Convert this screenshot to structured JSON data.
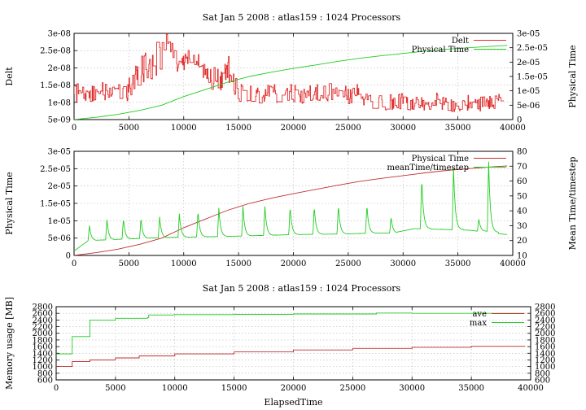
{
  "chart_data": [
    {
      "type": "line",
      "title": "Sat Jan 5 2008 : atlas159 : 1024 Processors",
      "xlabel": "",
      "ylabel": "Delt",
      "y2label": "Physical Time",
      "xlim": [
        0,
        40000
      ],
      "ylim": [
        5e-09,
        3e-08
      ],
      "y2lim": [
        0,
        3e-05
      ],
      "x_ticks": [
        "0",
        "5000",
        "10000",
        "15000",
        "20000",
        "25000",
        "30000",
        "35000",
        "40000"
      ],
      "y_ticks": [
        "5e-09",
        "1e-08",
        "1.5e-08",
        "2e-08",
        "2.5e-08",
        "3e-08"
      ],
      "y2_ticks": [
        "0",
        "5e-06",
        "1e-05",
        "1.5e-05",
        "2e-05",
        "2.5e-05",
        "3e-05"
      ],
      "grid": true,
      "legend_position": "top-right",
      "series": [
        {
          "name": "Delt",
          "axis": "y",
          "color": "#e03030",
          "x": [
            0,
            800,
            1600,
            2500,
            3500,
            4500,
            5000,
            5800,
            6500,
            7200,
            8000,
            8500,
            9000,
            9500,
            10000,
            10500,
            11000,
            11500,
            12000,
            12500,
            13000,
            13500,
            14000,
            15000,
            16000,
            17000,
            18000,
            19000,
            20000,
            21000,
            22000,
            23000,
            24000,
            25000,
            26000,
            26500,
            27000,
            28000,
            29000,
            30000,
            31000,
            32000,
            33000,
            34000,
            35000,
            36000,
            37000,
            38000,
            39000
          ],
          "y": [
            1.25e-08,
            1.3e-08,
            1.2e-08,
            1.35e-08,
            1.3e-08,
            1.2e-08,
            1.4e-08,
            1.9e-08,
            2e-08,
            2.15e-08,
            2.5e-08,
            2.7e-08,
            2.55e-08,
            2e-08,
            2.2e-08,
            2.3e-08,
            2.25e-08,
            2.1e-08,
            1.8e-08,
            1.75e-08,
            1.6e-08,
            1.65e-08,
            2e-08,
            1.25e-08,
            1.25e-08,
            1.2e-08,
            1.3e-08,
            1.25e-08,
            1.3e-08,
            1.2e-08,
            1.25e-08,
            1.3e-08,
            1.25e-08,
            1.2e-08,
            1.3e-08,
            1.1e-08,
            1.05e-08,
            1e-08,
            1e-08,
            1.05e-08,
            9.5e-09,
            1e-08,
            1.05e-08,
            9.5e-09,
            8.5e-09,
            1e-08,
            9.5e-09,
            1e-08,
            1.05e-08
          ]
        },
        {
          "name": "Physical Time",
          "axis": "y2",
          "color": "#22cc22",
          "x": [
            0,
            2000,
            4000,
            6000,
            8000,
            10000,
            12000,
            14000,
            16000,
            18000,
            20000,
            22000,
            24000,
            26000,
            28000,
            30000,
            32000,
            34000,
            36000,
            38000,
            39500
          ],
          "y": [
            0,
            8e-07,
            1.8e-06,
            3.2e-06,
            5e-06,
            8e-06,
            1.05e-05,
            1.3e-05,
            1.5e-05,
            1.65e-05,
            1.78e-05,
            1.9e-05,
            2.02e-05,
            2.13e-05,
            2.22e-05,
            2.3e-05,
            2.38e-05,
            2.45e-05,
            2.5e-05,
            2.55e-05,
            2.58e-05
          ]
        }
      ]
    },
    {
      "type": "line",
      "title": "",
      "xlabel": "",
      "ylabel": "Physical Time",
      "y2label": "Mean Time/timestep",
      "xlim": [
        0,
        40000
      ],
      "ylim": [
        0,
        3e-05
      ],
      "y2lim": [
        10,
        80
      ],
      "x_ticks": [
        "0",
        "5000",
        "10000",
        "15000",
        "20000",
        "25000",
        "30000",
        "35000",
        "40000"
      ],
      "y_ticks": [
        "0",
        "5e-06",
        "1e-05",
        "1.5e-05",
        "2e-05",
        "2.5e-05",
        "3e-05"
      ],
      "y2_ticks": [
        "10",
        "20",
        "30",
        "40",
        "50",
        "60",
        "70",
        "80"
      ],
      "grid": true,
      "legend_position": "top-right",
      "series": [
        {
          "name": "Physical Time",
          "axis": "y",
          "color": "#c03030",
          "x": [
            0,
            2000,
            4000,
            6000,
            8000,
            10000,
            12000,
            14000,
            16000,
            18000,
            20000,
            22000,
            24000,
            26000,
            28000,
            30000,
            32000,
            34000,
            36000,
            38000,
            39500
          ],
          "y": [
            0,
            8e-07,
            1.8e-06,
            3.2e-06,
            5e-06,
            8e-06,
            1.05e-05,
            1.3e-05,
            1.5e-05,
            1.65e-05,
            1.78e-05,
            1.9e-05,
            2.02e-05,
            2.13e-05,
            2.22e-05,
            2.3e-05,
            2.38e-05,
            2.45e-05,
            2.5e-05,
            2.55e-05,
            2.58e-05
          ]
        },
        {
          "name": "meanTime/timestep",
          "axis": "y2",
          "color": "#22cc22",
          "baseline_x": [
            0,
            1300,
            8000,
            15000,
            20000,
            25000,
            27000,
            29000,
            31000,
            36000,
            39500
          ],
          "baseline_y": [
            13,
            20,
            22,
            23,
            24,
            24.5,
            25,
            25,
            28,
            27,
            24
          ],
          "peaks_x": [
            1400,
            3000,
            4500,
            6100,
            7800,
            9600,
            11300,
            13200,
            15400,
            17400,
            19700,
            21900,
            24100,
            26700,
            28900,
            31700,
            34600,
            36900,
            37800
          ],
          "peaks_y": [
            30,
            34,
            35,
            35,
            36,
            38,
            40,
            42,
            43,
            43,
            43,
            43,
            44,
            44,
            36,
            62,
            69,
            35,
            73
          ]
        }
      ]
    },
    {
      "type": "line",
      "title": "Sat Jan 5 2008 : atlas159 : 1024 Processors",
      "xlabel": "ElapsedTime",
      "ylabel": "Memory usage [MB]",
      "xlim": [
        0,
        40000
      ],
      "ylim": [
        600,
        2800
      ],
      "y2lim": [
        600,
        2800
      ],
      "x_ticks": [
        "0",
        "5000",
        "10000",
        "15000",
        "20000",
        "25000",
        "30000",
        "35000",
        "40000"
      ],
      "y_ticks": [
        "600",
        "800",
        "1000",
        "1200",
        "1400",
        "1600",
        "1800",
        "2000",
        "2200",
        "2400",
        "2600",
        "2800"
      ],
      "y2_ticks": [
        "600",
        "800",
        "1000",
        "1200",
        "1400",
        "1600",
        "1800",
        "2000",
        "2200",
        "2400",
        "2600",
        "2800"
      ],
      "grid": true,
      "legend_position": "top-right",
      "series": [
        {
          "name": "ave",
          "axis": "y",
          "color": "#c03030",
          "x": [
            0,
            1300,
            1350,
            2800,
            2850,
            5000,
            7000,
            10000,
            15000,
            20000,
            25000,
            30000,
            35000,
            39500
          ],
          "y": [
            1000,
            1000,
            1150,
            1150,
            1200,
            1260,
            1320,
            1380,
            1440,
            1500,
            1545,
            1580,
            1610,
            1620
          ]
        },
        {
          "name": "max",
          "axis": "y",
          "color": "#22cc22",
          "x": [
            0,
            1300,
            1350,
            2800,
            2850,
            5000,
            7700,
            7800,
            10000,
            15000,
            20000,
            25000,
            27000,
            30000,
            35000,
            39500
          ],
          "y": [
            1380,
            1380,
            1900,
            1900,
            2400,
            2450,
            2470,
            2550,
            2560,
            2570,
            2580,
            2580,
            2610,
            2600,
            2600,
            2600
          ]
        }
      ]
    }
  ]
}
